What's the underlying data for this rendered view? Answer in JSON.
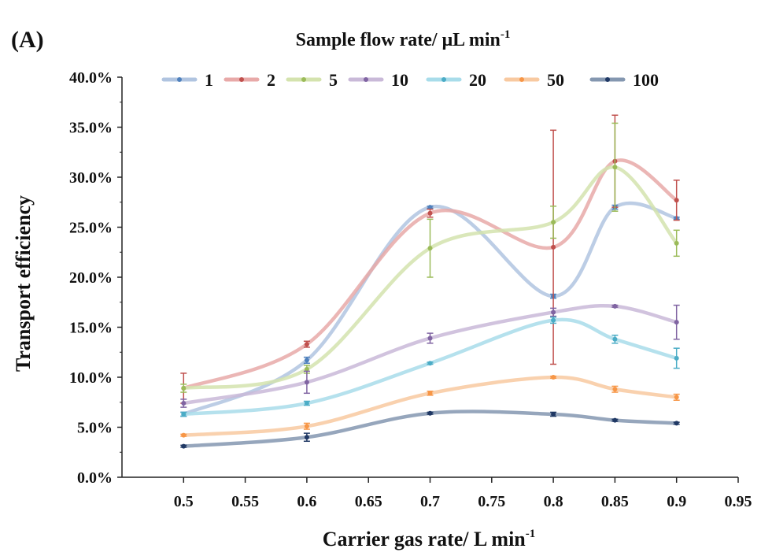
{
  "panel_label": "(A)",
  "chart_data": {
    "type": "line",
    "legend_title": "Sample flow rate/ μL min",
    "legend_title_sup": "-1",
    "xlabel": "Carrier gas rate/ L min",
    "xlabel_sup": "-1",
    "ylabel": "Transport efficiency",
    "xlim": [
      0.45,
      0.95
    ],
    "ylim": [
      0,
      0.4
    ],
    "x_ticks": [
      0.5,
      0.55,
      0.6,
      0.65,
      0.7,
      0.75,
      0.8,
      0.85,
      0.9,
      0.95
    ],
    "x_tick_labels": [
      "0.5",
      "0.55",
      "0.6",
      "0.65",
      "0.7",
      "0.75",
      "0.8",
      "0.85",
      "0.9",
      "0.95"
    ],
    "y_ticks": [
      0,
      0.05,
      0.1,
      0.15,
      0.2,
      0.25,
      0.3,
      0.35,
      0.4
    ],
    "y_tick_labels": [
      "0.0%",
      "5.0%",
      "10.0%",
      "15.0%",
      "20.0%",
      "25.0%",
      "30.0%",
      "35.0%",
      "40.0%"
    ],
    "grid": false,
    "legend_position": "top",
    "x": [
      0.5,
      0.6,
      0.7,
      0.8,
      0.85,
      0.9
    ],
    "series": [
      {
        "name": "1",
        "line_color": "#b0c4e0",
        "marker_color": "#4f81bd",
        "values": [
          0.063,
          0.117,
          0.27,
          0.181,
          0.27,
          0.259
        ],
        "errors": [
          0.002,
          0.003,
          0.001,
          0.002,
          0.002,
          0.001
        ]
      },
      {
        "name": "2",
        "line_color": "#e8a9a8",
        "marker_color": "#c0504d",
        "values": [
          0.089,
          0.133,
          0.264,
          0.23,
          0.316,
          0.277
        ],
        "errors": [
          0.015,
          0.003,
          0.004,
          0.117,
          0.046,
          0.02
        ]
      },
      {
        "name": "5",
        "line_color": "#d4e3ae",
        "marker_color": "#9bbb59",
        "values": [
          0.089,
          0.108,
          0.229,
          0.255,
          0.31,
          0.234
        ],
        "errors": [
          0.004,
          0.004,
          0.029,
          0.016,
          0.044,
          0.013
        ]
      },
      {
        "name": "10",
        "line_color": "#c9b9d8",
        "marker_color": "#8064a2",
        "values": [
          0.074,
          0.095,
          0.139,
          0.165,
          0.171,
          0.155
        ],
        "errors": [
          0.004,
          0.011,
          0.005,
          0.004,
          0.001,
          0.017
        ]
      },
      {
        "name": "20",
        "line_color": "#a8dcea",
        "marker_color": "#4bacc6",
        "values": [
          0.063,
          0.074,
          0.114,
          0.157,
          0.138,
          0.119
        ],
        "errors": [
          0.002,
          0.002,
          0.001,
          0.003,
          0.004,
          0.01
        ]
      },
      {
        "name": "50",
        "line_color": "#f8c9a0",
        "marker_color": "#f79646",
        "values": [
          0.042,
          0.051,
          0.084,
          0.1,
          0.088,
          0.08
        ],
        "errors": [
          0.001,
          0.003,
          0.002,
          0.001,
          0.003,
          0.003
        ]
      },
      {
        "name": "100",
        "line_color": "#8497b0",
        "marker_color": "#1f3864",
        "values": [
          0.031,
          0.04,
          0.064,
          0.063,
          0.057,
          0.054
        ],
        "errors": [
          0.001,
          0.004,
          0.001,
          0.002,
          0.001,
          0.001
        ]
      }
    ]
  }
}
